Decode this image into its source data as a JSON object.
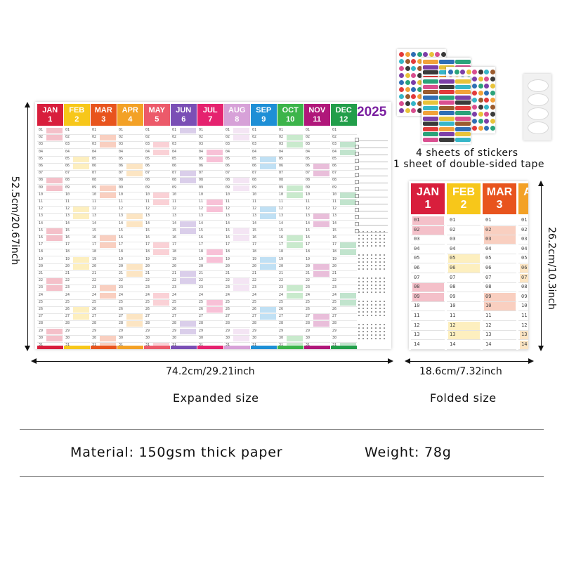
{
  "year": "2025",
  "months": [
    {
      "abbr": "JAN",
      "num": "1",
      "color": "#d81e3c"
    },
    {
      "abbr": "FEB",
      "num": "2",
      "color": "#f7c71a"
    },
    {
      "abbr": "MAR",
      "num": "3",
      "color": "#e8541d"
    },
    {
      "abbr": "APR",
      "num": "4",
      "color": "#f3a126"
    },
    {
      "abbr": "MAY",
      "num": "5",
      "color": "#ec5a6a"
    },
    {
      "abbr": "JUN",
      "num": "6",
      "color": "#7a4fb5"
    },
    {
      "abbr": "JUL",
      "num": "7",
      "color": "#e5226f"
    },
    {
      "abbr": "AUG",
      "num": "8",
      "color": "#d7a1d8"
    },
    {
      "abbr": "SEP",
      "num": "9",
      "color": "#1e8fd6"
    },
    {
      "abbr": "OCT",
      "num": "10",
      "color": "#3cb44a"
    },
    {
      "abbr": "NOV",
      "num": "11",
      "color": "#b0177a"
    },
    {
      "abbr": "DEC",
      "num": "12",
      "color": "#229e4a"
    }
  ],
  "days": [
    "01",
    "02",
    "03",
    "04",
    "05",
    "06",
    "07",
    "08",
    "09",
    "10",
    "11",
    "12",
    "13",
    "14",
    "15",
    "16",
    "17",
    "18",
    "19",
    "20",
    "21",
    "22",
    "23",
    "24",
    "25",
    "26",
    "27",
    "28",
    "29",
    "30",
    "31"
  ],
  "folded_days": [
    "01",
    "02",
    "03",
    "04",
    "05",
    "06",
    "07",
    "08",
    "09",
    "10",
    "11",
    "12",
    "13",
    "14"
  ],
  "stickers_caption_1": "4 sheets of stickers",
  "stickers_caption_2": "1 sheet of double-sided tape",
  "dim_height_expanded": "52.5cm/20.67inch",
  "dim_width_expanded": "74.2cm/29.21inch",
  "dim_height_folded": "26.2cm/10.3inch",
  "dim_width_folded": "18.6cm/7.32inch",
  "caption_expanded": "Expanded size",
  "caption_folded": "Folded size",
  "material": "Material: 150gsm thick paper",
  "weight": "Weight: 78g"
}
